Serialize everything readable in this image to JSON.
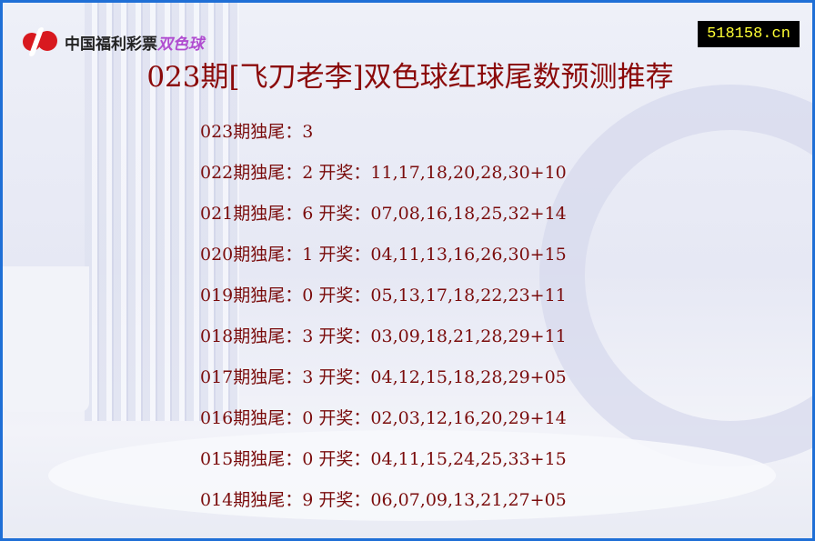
{
  "logo": {
    "text": "中国福利彩票",
    "product": "双色球",
    "color": "#d8191f"
  },
  "badge": {
    "text": "518158.cn"
  },
  "title": "023期[飞刀老李]双色球红球尾数预测推荐",
  "rows": [
    {
      "text": "023期独尾：3"
    },
    {
      "text": "022期独尾：2 开奖：11,17,18,20,28,30+10"
    },
    {
      "text": "021期独尾：6 开奖：07,08,16,18,25,32+14"
    },
    {
      "text": "020期独尾：1 开奖：04,11,13,16,26,30+15"
    },
    {
      "text": "019期独尾：0 开奖：05,13,17,18,22,23+11"
    },
    {
      "text": "018期独尾：3 开奖：03,09,18,21,28,29+11"
    },
    {
      "text": "017期独尾：3 开奖：04,12,15,18,28,29+05"
    },
    {
      "text": "016期独尾：0 开奖：02,03,12,16,20,29+14"
    },
    {
      "text": "015期独尾：0 开奖：04,11,15,24,25,33+15"
    },
    {
      "text": "014期独尾：9 开奖：06,07,09,13,21,27+05"
    }
  ]
}
